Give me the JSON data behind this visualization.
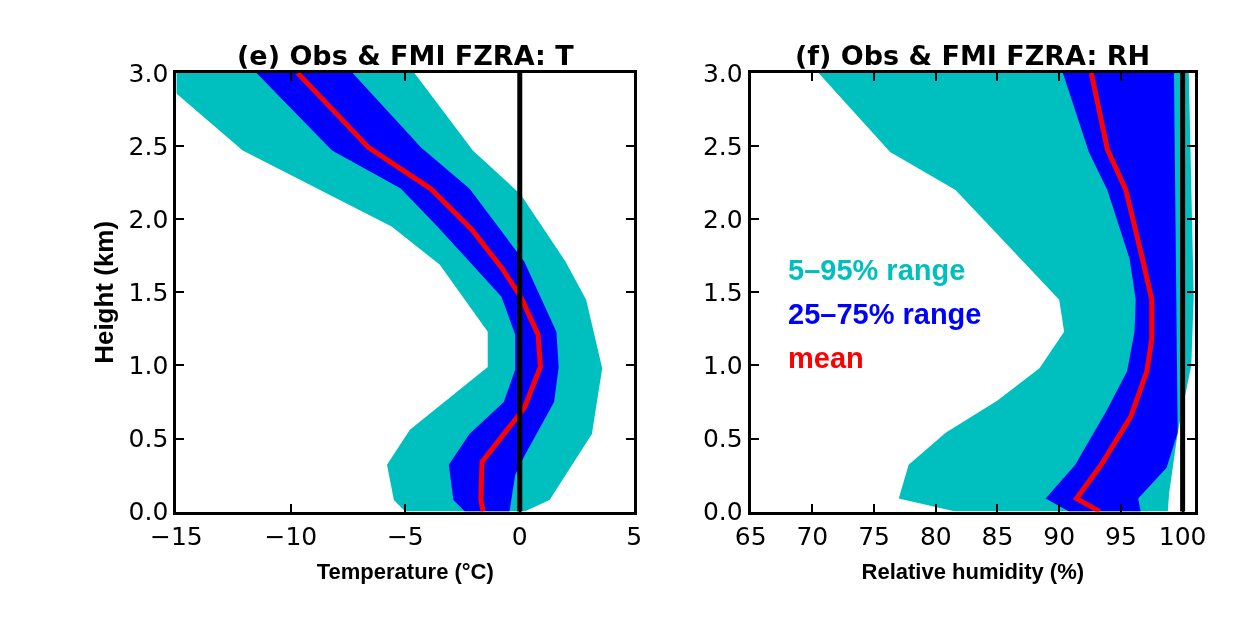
{
  "chart_data": [
    {
      "type": "line",
      "title": "(e) Obs & FMI FZRA: T",
      "xlabel": "Temperature (°C)",
      "ylabel": "Height (km)",
      "xlim": [
        -15,
        5
      ],
      "xticks": [
        {
          "value": -15,
          "label": "−15"
        },
        {
          "value": -10,
          "label": "−10"
        },
        {
          "value": -5,
          "label": "−5"
        },
        0,
        5
      ],
      "ylim": [
        0,
        3
      ],
      "yticks": [
        {
          "value": 0,
          "label": "0.0"
        },
        {
          "value": 0.5,
          "label": "0.5"
        },
        {
          "value": 1,
          "label": "1.0"
        },
        {
          "value": 1.5,
          "label": "1.5"
        },
        {
          "value": 2,
          "label": "2.0"
        },
        {
          "value": 2.5,
          "label": "2.5"
        },
        {
          "value": 3,
          "label": "3.0"
        }
      ],
      "legend": false,
      "series": [
        {
          "type": "area",
          "color": "#00bfbf",
          "x": [
            -15,
            -15,
            -12.1,
            -5.6,
            -3.5,
            -1.4,
            -1.4,
            -4.8,
            -5.8,
            -5.5,
            -5.0,
            0.2,
            1.3,
            3.15,
            3.6,
            2.9,
            2.0,
            0.04,
            -2.05,
            -4.6
          ],
          "values": [
            3.0,
            2.86,
            2.47,
            1.95,
            1.69,
            1.23,
            0.99,
            0.56,
            0.32,
            0.08,
            0,
            0,
            0.08,
            0.53,
            0.98,
            1.45,
            1.71,
            2.17,
            2.47,
            3.0
          ]
        },
        {
          "type": "area",
          "color": "#0000ff",
          "x": [
            -11.5,
            -8.2,
            -5.2,
            -3.6,
            -0.8,
            -0.2,
            -0.2,
            -0.7,
            -2.2,
            -3.1,
            -2.9,
            -2.4,
            -0.45,
            -0.2,
            0.2,
            1.5,
            1.7,
            1.6,
            0.2,
            -2.2,
            -4.3,
            -7.3
          ],
          "values": [
            3.0,
            2.47,
            2.21,
            1.95,
            1.47,
            1.21,
            0.97,
            0.75,
            0.53,
            0.32,
            0.08,
            0,
            0,
            0.25,
            0.38,
            0.75,
            0.99,
            1.23,
            1.71,
            2.21,
            2.49,
            3.0
          ]
        },
        {
          "color": "#ff0000",
          "x": [
            -9.7,
            -6.6,
            -3.9,
            -2.1,
            -0.8,
            0.04,
            0.8,
            0.9,
            0.2,
            -1.65,
            -1.7,
            -1.6
          ],
          "values": [
            3.0,
            2.49,
            2.21,
            1.93,
            1.67,
            1.47,
            1.21,
            0.99,
            0.71,
            0.34,
            0.08,
            0
          ]
        }
      ],
      "ref_lines": [
        {
          "axis": "x",
          "value": 0,
          "color": "#000000"
        }
      ]
    },
    {
      "type": "line",
      "title": "(f) Obs & FMI FZRA: RH",
      "xlabel": "Relative humidity (%)",
      "xlim": [
        65,
        101
      ],
      "xticks": [
        65,
        70,
        75,
        80,
        85,
        90,
        95,
        100
      ],
      "ylim": [
        0,
        3
      ],
      "yticks": [
        {
          "value": 0,
          "label": "0.0"
        },
        {
          "value": 0.5,
          "label": "0.5"
        },
        {
          "value": 1,
          "label": "1.0"
        },
        {
          "value": 1.5,
          "label": "1.5"
        },
        {
          "value": 2,
          "label": "2.0"
        },
        {
          "value": 2.5,
          "label": "2.5"
        },
        {
          "value": 3,
          "label": "3.0"
        }
      ],
      "legend": "left",
      "series": [
        {
          "type": "area",
          "name": "5–95% range",
          "color": "#00bfbf",
          "x": [
            70.5,
            76.3,
            81.6,
            90.0,
            90.4,
            88.4,
            85.0,
            80.8,
            77.8,
            77.0,
            81.6,
            98.8,
            98.9,
            99.6,
            100.7,
            100.9,
            100.5
          ],
          "values": [
            3.0,
            2.46,
            2.2,
            1.45,
            1.23,
            0.98,
            0.76,
            0.54,
            0.32,
            0.09,
            0,
            0,
            0.12,
            0.54,
            1.0,
            1.47,
            3.0
          ]
        },
        {
          "type": "area",
          "name": "25–75% range",
          "color": "#0000ff",
          "x": [
            90.3,
            92.4,
            93.9,
            95.7,
            96.2,
            96.1,
            95.5,
            93.9,
            91.3,
            88.9,
            90.8,
            96.6,
            96.4,
            98.7,
            99.6,
            99.3
          ],
          "values": [
            3.0,
            2.46,
            2.2,
            1.73,
            1.45,
            1.23,
            0.96,
            0.7,
            0.32,
            0.09,
            0,
            0,
            0.09,
            0.3,
            0.54,
            3.0
          ]
        },
        {
          "name": "mean",
          "color": "#ff0000",
          "x": [
            92.6,
            93.9,
            95.4,
            96.8,
            97.5,
            97.5,
            97.1,
            95.8,
            93.4,
            91.4,
            93.3
          ],
          "values": [
            3.0,
            2.48,
            2.2,
            1.71,
            1.45,
            1.18,
            0.96,
            0.65,
            0.32,
            0.09,
            0
          ]
        }
      ],
      "ref_lines": [
        {
          "axis": "x",
          "value": 100,
          "color": "#000000"
        }
      ]
    }
  ]
}
